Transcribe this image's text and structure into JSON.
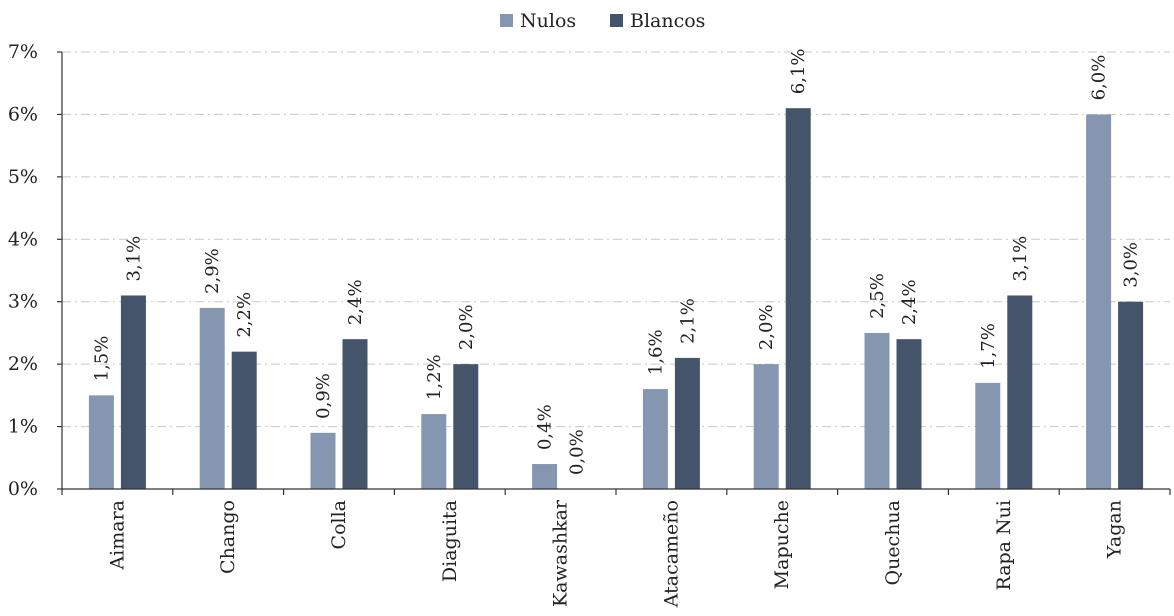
{
  "chart_data": {
    "type": "bar",
    "categories": [
      "Aimara",
      "Chango",
      "Colla",
      "Diaguita",
      "Kawashkar",
      "Atacameño",
      "Mapuche",
      "Quechua",
      "Rapa Nui",
      "Yagan"
    ],
    "series": [
      {
        "name": "Nulos",
        "color": "#8597b0",
        "values": [
          1.5,
          2.9,
          0.9,
          1.2,
          0.4,
          1.6,
          2.0,
          2.5,
          1.7,
          6.0
        ],
        "labels": [
          "1,5%",
          "2,9%",
          "0,9%",
          "1,2%",
          "0,4%",
          "1,6%",
          "2,0%",
          "2,5%",
          "1,7%",
          "6,0%"
        ]
      },
      {
        "name": "Blancos",
        "color": "#44546a",
        "values": [
          3.1,
          2.2,
          2.4,
          2.0,
          0.0,
          2.1,
          6.1,
          2.4,
          3.1,
          3.0
        ],
        "labels": [
          "3,1%",
          "2,2%",
          "2,4%",
          "2,0%",
          "0,0%",
          "2,1%",
          "6,1%",
          "2,4%",
          "3,1%",
          "3,0%"
        ]
      }
    ],
    "yticks": [
      "0%",
      "1%",
      "2%",
      "3%",
      "4%",
      "5%",
      "6%",
      "7%"
    ],
    "ylim": [
      0,
      7
    ],
    "grid": true,
    "legend_position": "top-center",
    "title": "",
    "xlabel": "",
    "ylabel": ""
  }
}
